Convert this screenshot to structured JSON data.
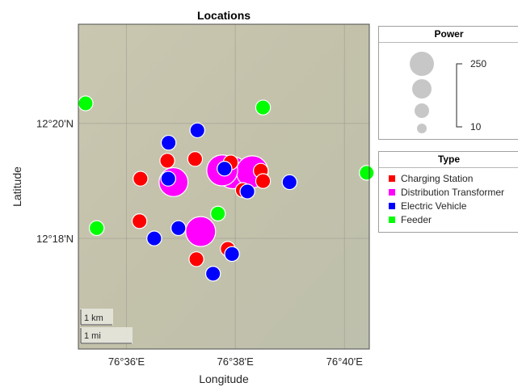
{
  "title": "Locations",
  "axes": {
    "xlabel": "Longitude",
    "ylabel": "Latitude",
    "xticks": [
      {
        "value": 76.6,
        "label": "76°36'E"
      },
      {
        "value": 76.6333,
        "label": "76°38'E"
      },
      {
        "value": 76.6667,
        "label": "76°40'E"
      }
    ],
    "yticks": [
      {
        "value": 12.3333,
        "label": "12°20'N"
      },
      {
        "value": 12.3,
        "label": "12°18'N"
      }
    ],
    "xlim": [
      76.5853,
      76.6743
    ],
    "ylim": [
      12.268,
      12.362
    ]
  },
  "scale_bar": {
    "km_label": "1 km",
    "mi_label": "1 mi"
  },
  "legend_power": {
    "title": "Power",
    "max_label": "250",
    "min_label": "10"
  },
  "legend_type": {
    "title": "Type",
    "items": [
      {
        "label": "Charging Station",
        "color": "#ff0000"
      },
      {
        "label": "Distribution Transformer",
        "color": "#ff00ff"
      },
      {
        "label": "Electric Vehicle",
        "color": "#0000ff"
      },
      {
        "label": "Feeder",
        "color": "#00ff00"
      }
    ]
  },
  "chart_data": {
    "type": "scatter",
    "title": "Locations",
    "xlabel": "Longitude",
    "ylabel": "Latitude",
    "xlim": [
      76.5853,
      76.6743
    ],
    "ylim": [
      12.268,
      12.362
    ],
    "legend_placement": "right",
    "size_legend": {
      "title": "Power",
      "range": [
        10,
        250
      ]
    },
    "series": [
      {
        "name": "Charging Station",
        "color": "#ff0000",
        "points": [
          {
            "lon": 76.6125,
            "lat": 12.3225,
            "power": 60
          },
          {
            "lon": 76.621,
            "lat": 12.323,
            "power": 60
          },
          {
            "lon": 76.6043,
            "lat": 12.3173,
            "power": 60
          },
          {
            "lon": 76.604,
            "lat": 12.305,
            "power": 60
          },
          {
            "lon": 76.6319,
            "lat": 12.322,
            "power": 60
          },
          {
            "lon": 76.6411,
            "lat": 12.3196,
            "power": 60
          },
          {
            "lon": 76.6418,
            "lat": 12.3166,
            "power": 60
          },
          {
            "lon": 76.6356,
            "lat": 12.314,
            "power": 60
          },
          {
            "lon": 76.631,
            "lat": 12.297,
            "power": 60
          },
          {
            "lon": 76.6214,
            "lat": 12.294,
            "power": 60
          }
        ]
      },
      {
        "name": "Distribution Transformer",
        "color": "#ff00ff",
        "points": [
          {
            "lon": 76.6144,
            "lat": 12.3163,
            "power": 200
          },
          {
            "lon": 76.6293,
            "lat": 12.3197,
            "power": 220
          },
          {
            "lon": 76.6326,
            "lat": 12.319,
            "power": 230
          },
          {
            "lon": 76.6385,
            "lat": 12.3193,
            "power": 230
          },
          {
            "lon": 76.6227,
            "lat": 12.302,
            "power": 210
          }
        ]
      },
      {
        "name": "Electric Vehicle",
        "color": "#0000ff",
        "points": [
          {
            "lon": 76.6217,
            "lat": 12.3313,
            "power": 60
          },
          {
            "lon": 76.6129,
            "lat": 12.3277,
            "power": 60
          },
          {
            "lon": 76.63,
            "lat": 12.3202,
            "power": 60
          },
          {
            "lon": 76.6128,
            "lat": 12.3173,
            "power": 60
          },
          {
            "lon": 76.6499,
            "lat": 12.3163,
            "power": 60
          },
          {
            "lon": 76.637,
            "lat": 12.3136,
            "power": 60
          },
          {
            "lon": 76.6159,
            "lat": 12.303,
            "power": 60
          },
          {
            "lon": 76.6085,
            "lat": 12.3,
            "power": 60
          },
          {
            "lon": 76.6323,
            "lat": 12.2955,
            "power": 60
          },
          {
            "lon": 76.6265,
            "lat": 12.2898,
            "power": 60
          }
        ]
      },
      {
        "name": "Feeder",
        "color": "#00ff00",
        "points": [
          {
            "lon": 76.5875,
            "lat": 12.3391,
            "power": 60
          },
          {
            "lon": 76.6418,
            "lat": 12.3379,
            "power": 60
          },
          {
            "lon": 76.6735,
            "lat": 12.319,
            "power": 60
          },
          {
            "lon": 76.628,
            "lat": 12.3072,
            "power": 60
          },
          {
            "lon": 76.5909,
            "lat": 12.303,
            "power": 60
          }
        ]
      }
    ]
  }
}
